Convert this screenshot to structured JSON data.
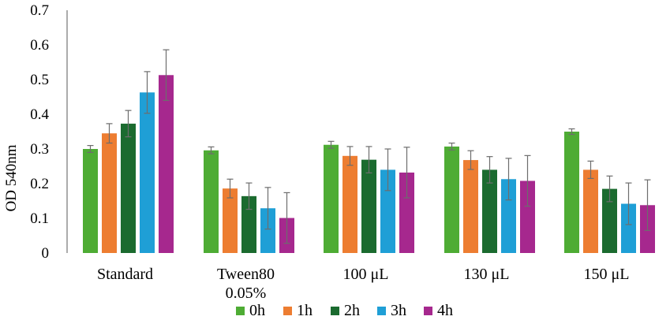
{
  "chart_data": {
    "type": "bar",
    "title": "",
    "xlabel": "",
    "ylabel": "OD 540nm",
    "ylim": [
      0,
      0.7
    ],
    "yticks": [
      "0",
      "0.1",
      "0.2",
      "0.3",
      "0.4",
      "0.5",
      "0.6",
      "0.7"
    ],
    "grid": false,
    "legend_position": "bottom",
    "categories": [
      [
        "Standard"
      ],
      [
        "Tween80",
        "0.05%"
      ],
      [
        "100 μL"
      ],
      [
        "130  μL"
      ],
      [
        "150  μL"
      ]
    ],
    "series": [
      {
        "name": "0h",
        "color": "#4eac34",
        "values": [
          0.3,
          0.296,
          0.312,
          0.307,
          0.35
        ],
        "errors": [
          0.01,
          0.01,
          0.01,
          0.01,
          0.008
        ]
      },
      {
        "name": "1h",
        "color": "#ed7d31",
        "values": [
          0.345,
          0.186,
          0.28,
          0.268,
          0.24
        ],
        "errors": [
          0.028,
          0.027,
          0.027,
          0.027,
          0.025
        ]
      },
      {
        "name": "2h",
        "color": "#1b6b2f",
        "values": [
          0.373,
          0.164,
          0.269,
          0.24,
          0.185
        ],
        "errors": [
          0.038,
          0.038,
          0.038,
          0.038,
          0.037
        ]
      },
      {
        "name": "3h",
        "color": "#1f9fd6",
        "values": [
          0.463,
          0.129,
          0.24,
          0.213,
          0.142
        ],
        "errors": [
          0.06,
          0.06,
          0.06,
          0.06,
          0.06
        ]
      },
      {
        "name": "4h",
        "color": "#a6288e",
        "values": [
          0.513,
          0.101,
          0.232,
          0.208,
          0.138
        ],
        "errors": [
          0.073,
          0.073,
          0.073,
          0.073,
          0.073
        ]
      }
    ]
  }
}
